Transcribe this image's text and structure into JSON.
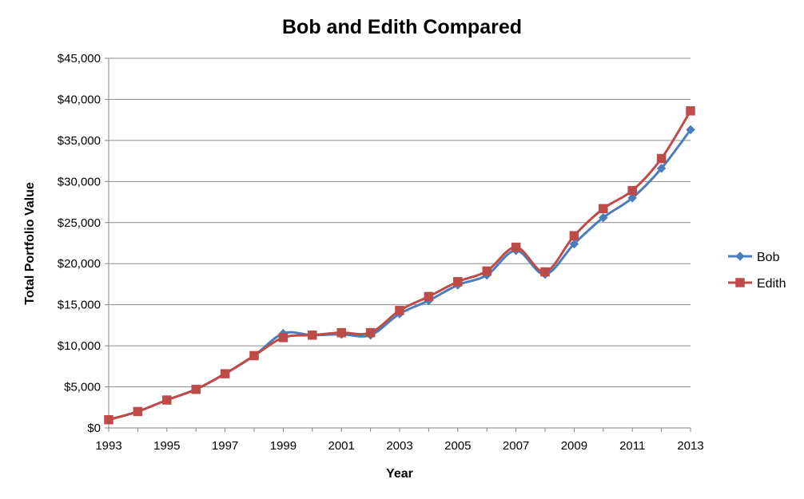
{
  "chart_data": {
    "type": "line",
    "title": "Bob and Edith Compared",
    "xlabel": "Year",
    "ylabel": "Total Portfolio Value",
    "x": [
      1993,
      1994,
      1995,
      1996,
      1997,
      1998,
      1999,
      2000,
      2001,
      2002,
      2003,
      2004,
      2005,
      2006,
      2007,
      2008,
      2009,
      2010,
      2011,
      2012,
      2013
    ],
    "xlim": [
      1993,
      2013
    ],
    "ylim": [
      0,
      45000
    ],
    "x_ticks": [
      "1993",
      "1995",
      "1997",
      "1999",
      "2001",
      "2003",
      "2005",
      "2007",
      "2009",
      "2011",
      "2013"
    ],
    "y_ticks": [
      "$0",
      "$5,000",
      "$10,000",
      "$15,000",
      "$20,000",
      "$25,000",
      "$30,000",
      "$35,000",
      "$40,000",
      "$45,000"
    ],
    "grid": "horizontal",
    "legend_position": "right",
    "series": [
      {
        "name": "Bob",
        "color": "#4a7ebb",
        "marker": "diamond",
        "values": [
          1000,
          2000,
          3400,
          4700,
          6600,
          8800,
          11500,
          11300,
          11400,
          11300,
          13900,
          15500,
          17400,
          18600,
          21600,
          18700,
          22400,
          25600,
          28000,
          31600,
          36300
        ]
      },
      {
        "name": "Edith",
        "color": "#be4b48",
        "marker": "square",
        "values": [
          1000,
          2000,
          3400,
          4700,
          6600,
          8800,
          11000,
          11300,
          11600,
          11600,
          14300,
          16000,
          17800,
          19100,
          22000,
          19000,
          23400,
          26700,
          28900,
          32800,
          38600
        ]
      }
    ]
  }
}
